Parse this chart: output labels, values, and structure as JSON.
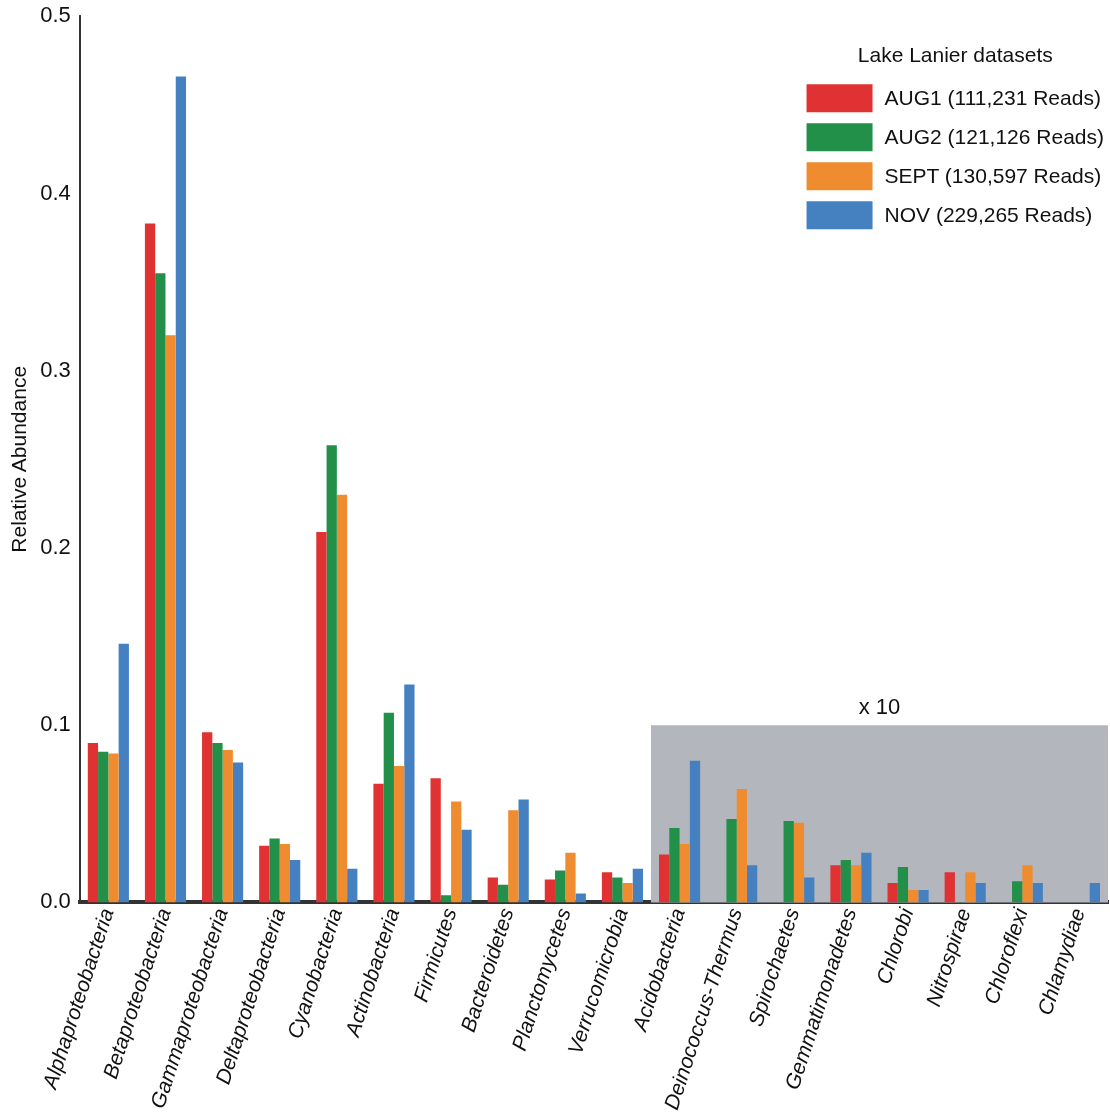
{
  "chart_data": {
    "type": "bar",
    "ylabel": "Relative Abundance",
    "legend_title": "Lake Lanier datasets",
    "legend": "top right",
    "grid": false,
    "categories": [
      "Alphaproteobacteria",
      "Betaproteobacteria",
      "Gammaproteobacteria",
      "Deltaproteobacteria",
      "Cyanobacteria",
      "Actinobacteria",
      "Firmicutes",
      "Bacteroidetes",
      "Planctomycetes",
      "Verrucomicrobia",
      "Acidobacteria",
      "Deinococcus-Thermus",
      "Spirochaetes",
      "Gemmatimonadetes",
      "Chlorobi",
      "Nitrospirae",
      "Chloroflexi",
      "Chlamydiae"
    ],
    "series": [
      {
        "name": "AUG1 (111,231 Reads)",
        "color": "#e03232",
        "values": [
          0.09,
          0.383,
          0.096,
          0.032,
          0.209,
          0.067,
          0.07,
          0.014,
          0.013,
          0.017,
          0.027,
          null,
          null,
          0.021,
          0.011,
          0.017,
          null,
          null
        ]
      },
      {
        "name": "AUG2 (121,126 Reads)",
        "color": "#23904a",
        "values": [
          0.085,
          0.355,
          0.09,
          0.036,
          0.258,
          0.107,
          0.004,
          0.01,
          0.018,
          0.014,
          0.042,
          0.047,
          0.046,
          0.024,
          0.02,
          null,
          0.012,
          null
        ]
      },
      {
        "name": "SEPT (130,597 Reads)",
        "color": "#ef8c30",
        "values": [
          0.084,
          0.32,
          0.086,
          0.033,
          0.23,
          0.077,
          0.057,
          0.052,
          0.028,
          0.011,
          0.033,
          0.064,
          0.045,
          0.021,
          0.007,
          0.017,
          0.021,
          null
        ]
      },
      {
        "name": "NOV (229,265 Reads)",
        "color": "#4580c0",
        "values": [
          0.146,
          0.466,
          0.079,
          0.024,
          0.019,
          0.123,
          0.041,
          0.058,
          0.005,
          0.019,
          0.08,
          0.021,
          0.014,
          0.028,
          0.007,
          0.011,
          0.011,
          0.011
        ]
      }
    ],
    "ylim": [
      0,
      0.5
    ],
    "yticks": [
      {
        "value": 0,
        "label": "0.0"
      },
      0.1,
      0.2,
      0.3,
      0.4,
      0.5
    ],
    "bands": [
      {
        "axis": "x",
        "from": "Acidobacteria",
        "to": "Chlamydiae",
        "label": "x 10",
        "color": "#b3b6bc"
      }
    ]
  }
}
